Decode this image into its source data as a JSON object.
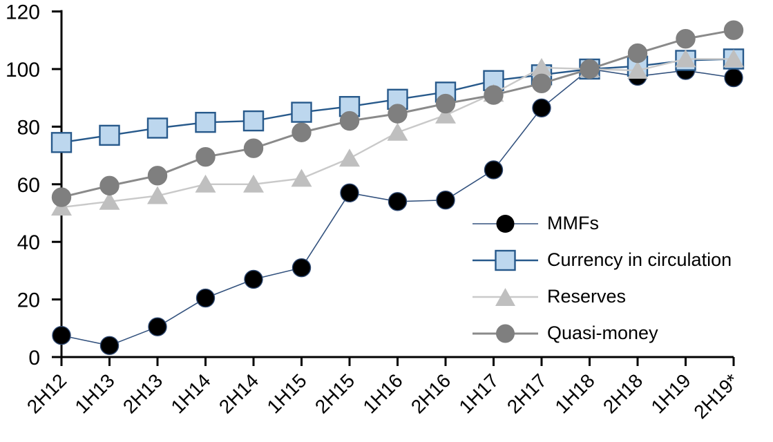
{
  "chart_data": {
    "type": "line",
    "title": "",
    "xlabel": "",
    "ylabel": "",
    "grid": false,
    "legend_position": "inside-right",
    "categories": [
      "2H12",
      "1H13",
      "2H13",
      "1H14",
      "2H14",
      "1H15",
      "2H15",
      "1H16",
      "2H16",
      "1H17",
      "2H17",
      "1H18",
      "2H18",
      "1H19",
      "2H19*"
    ],
    "y_axis": {
      "min": 0,
      "max": 120,
      "step": 20,
      "tick_labels": [
        "0",
        "20",
        "40",
        "60",
        "80",
        "100",
        "120"
      ]
    },
    "series": [
      {
        "name": "MMFs",
        "marker": "circle",
        "marker_fill": "#000000",
        "marker_stroke": "#2B456E",
        "line_color": "#33527E",
        "line_width": 1.6,
        "marker_size": 13,
        "values": [
          7.5,
          4,
          10.5,
          20.5,
          27,
          31,
          57,
          54,
          54.5,
          65,
          86.5,
          100,
          97.5,
          99.5,
          97
        ]
      },
      {
        "name": "Currency in circulation",
        "marker": "square",
        "marker_fill": "#BDD7EE",
        "marker_stroke": "#27598B",
        "line_color": "#27598B",
        "line_width": 2.4,
        "marker_size": 14,
        "values": [
          74.5,
          77,
          79.5,
          81.5,
          82,
          85,
          87,
          89.5,
          92,
          96,
          98,
          100,
          101,
          103,
          103.5
        ]
      },
      {
        "name": "Reserves",
        "marker": "triangle",
        "marker_fill": "#BFBFBF",
        "marker_stroke": "#BFBFBF",
        "line_color": "#C9C9C9",
        "line_width": 2.4,
        "marker_size": 15,
        "values": [
          52,
          54,
          56,
          60,
          60,
          62,
          69,
          78,
          84,
          91.5,
          100.5,
          100,
          99.5,
          103.5,
          103.5
        ]
      },
      {
        "name": "Quasi-money",
        "marker": "circle",
        "marker_fill": "#7F7F7F",
        "marker_stroke": "#7F7F7F",
        "line_color": "#8A8A8A",
        "line_width": 3,
        "marker_size": 13.5,
        "values": [
          55.5,
          59.5,
          63,
          69.5,
          72.5,
          78,
          82,
          84.5,
          88,
          91,
          95,
          100,
          105.5,
          110.5,
          113.5
        ]
      }
    ],
    "axis_color": "#000000",
    "label_color": "#000000"
  }
}
